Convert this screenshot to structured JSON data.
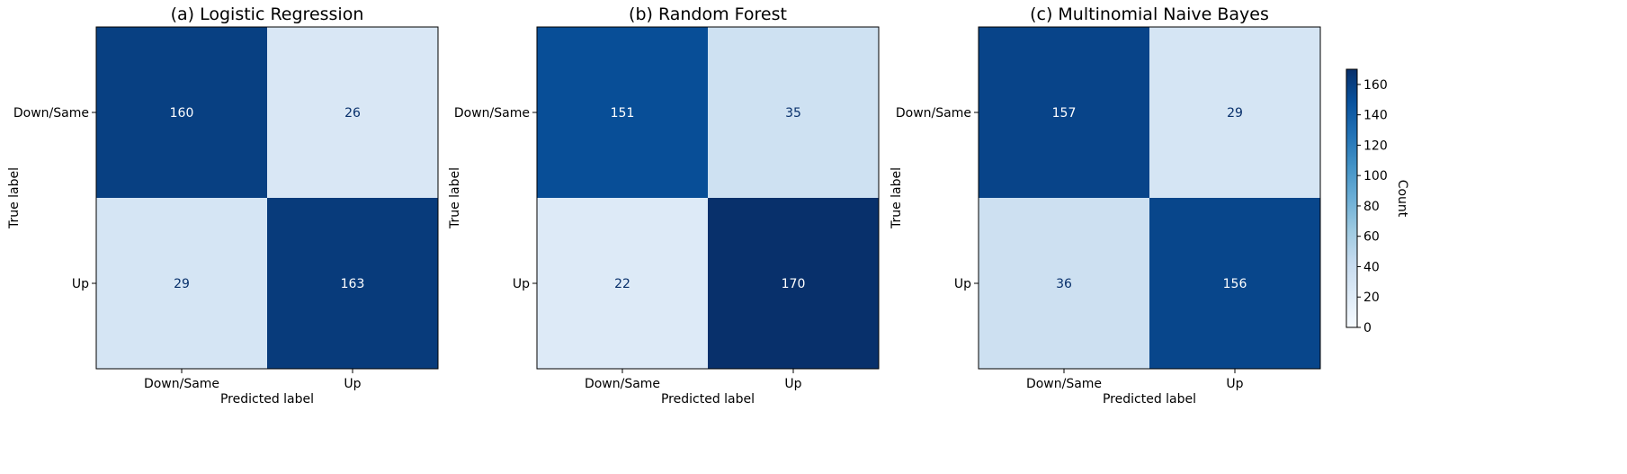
{
  "chart_data": [
    {
      "type": "heatmap",
      "title": "(a) Logistic Regression",
      "xlabel": "Predicted label",
      "ylabel": "True label",
      "x_categories": [
        "Down/Same",
        "Up"
      ],
      "y_categories": [
        "Down/Same",
        "Up"
      ],
      "values": [
        [
          160,
          26
        ],
        [
          29,
          163
        ]
      ]
    },
    {
      "type": "heatmap",
      "title": "(b) Random Forest",
      "xlabel": "Predicted label",
      "ylabel": "True label",
      "x_categories": [
        "Down/Same",
        "Up"
      ],
      "y_categories": [
        "Down/Same",
        "Up"
      ],
      "values": [
        [
          151,
          35
        ],
        [
          22,
          170
        ]
      ]
    },
    {
      "type": "heatmap",
      "title": "(c) Multinomial Naive Bayes",
      "xlabel": "Predicted label",
      "ylabel": "True label",
      "x_categories": [
        "Down/Same",
        "Up"
      ],
      "y_categories": [
        "Down/Same",
        "Up"
      ],
      "values": [
        [
          157,
          29
        ],
        [
          36,
          156
        ]
      ]
    }
  ],
  "colorbar": {
    "label": "Count",
    "range": [
      0,
      170
    ],
    "ticks": [
      0,
      20,
      40,
      60,
      80,
      100,
      120,
      140,
      160
    ],
    "colormap": "Blues"
  }
}
